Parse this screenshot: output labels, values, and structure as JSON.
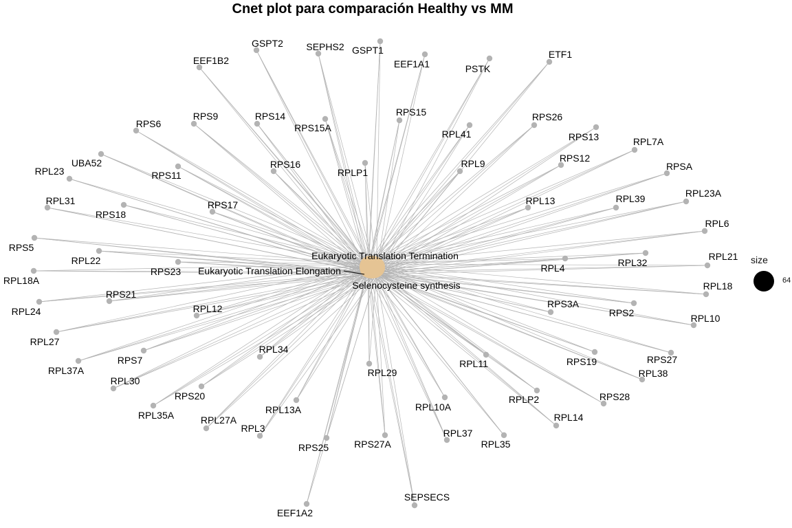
{
  "title": "Cnet plot para comparación Healthy vs MM",
  "legend": {
    "title": "size",
    "value": "64"
  },
  "colors": {
    "edge": "#b3b3b3",
    "gene_node": "#b3b3b3",
    "category_node": "#e5c494",
    "text": "#000000"
  },
  "categories": [
    "Eukaryotic Translation Termination",
    "Eukaryotic Translation Elongation",
    "Selenocysteine synthesis"
  ],
  "genes": [
    "GSPT2",
    "SEPHS2",
    "GSPT1",
    "EEF1B2",
    "EEF1A1",
    "PSTK",
    "ETF1",
    "RPS6",
    "RPS9",
    "RPS14",
    "RPS15A",
    "RPS15",
    "RPS26",
    "RPL41",
    "RPS13",
    "UBA52",
    "RPS16",
    "RPLP1",
    "RPL9",
    "RPS12",
    "RPL7A",
    "RPL23",
    "RPS11",
    "RPSA",
    "RPL31",
    "RPS17",
    "RPL13",
    "RPL39",
    "RPL23A",
    "RPS18",
    "RPL6",
    "RPS5",
    "RPL22",
    "RPL21",
    "RPS23",
    "RPL4",
    "RPL32",
    "RPL18A",
    "RPL18",
    "RPS21",
    "RPL24",
    "RPL12",
    "RPS3A",
    "RPS2",
    "RPL10",
    "RPL27",
    "RPS7",
    "RPS27",
    "RPL34",
    "RPL11",
    "RPS19",
    "RPL37A",
    "RPL29",
    "RPL38",
    "RPL30",
    "RPS20",
    "RPLP2",
    "RPS28",
    "RPL35A",
    "RPL13A",
    "RPL10A",
    "RPL14",
    "RPL27A",
    "RPL3",
    "RPL37",
    "RPL35",
    "RPS25",
    "RPS27A",
    "SEPSECS",
    "EEF1A2"
  ]
}
